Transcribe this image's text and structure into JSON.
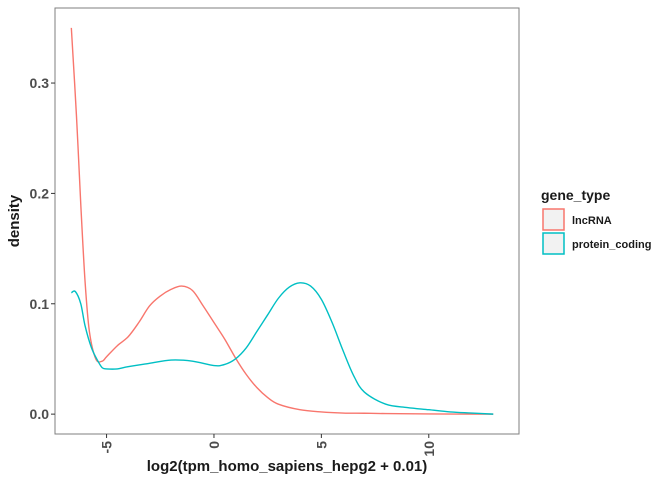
{
  "chart_data": {
    "type": "line",
    "xlabel": "log2(tpm_homo_sapiens_hepg2 + 0.01)",
    "ylabel": "density",
    "xlim": [
      -7.4,
      14.2
    ],
    "ylim": [
      -0.018,
      0.368
    ],
    "x_ticks": [
      -5,
      0,
      5,
      10
    ],
    "x_tick_labels": [
      "-5",
      "0",
      "5",
      "10"
    ],
    "y_ticks": [
      0.0,
      0.1,
      0.2,
      0.3
    ],
    "y_tick_labels": [
      "0.0",
      "0.1",
      "0.2",
      "0.3"
    ],
    "grid": false,
    "legend_position": "right",
    "legend_title": "gene_type",
    "series": [
      {
        "name": "lncRNA",
        "color": "#F8766D",
        "x": [
          -6.64,
          -6.4,
          -6.2,
          -6.0,
          -5.8,
          -5.5,
          -5.2,
          -5.0,
          -4.5,
          -4.0,
          -3.5,
          -3.0,
          -2.5,
          -2.0,
          -1.5,
          -1.0,
          -0.5,
          0.0,
          0.5,
          1.0,
          1.5,
          2.0,
          2.5,
          3.0,
          4.0,
          5.0,
          6.0,
          7.0,
          8.0,
          10.0,
          13.0
        ],
        "y": [
          0.35,
          0.27,
          0.19,
          0.12,
          0.075,
          0.05,
          0.048,
          0.052,
          0.062,
          0.07,
          0.083,
          0.098,
          0.107,
          0.113,
          0.116,
          0.112,
          0.098,
          0.083,
          0.068,
          0.051,
          0.036,
          0.024,
          0.015,
          0.009,
          0.004,
          0.002,
          0.001,
          0.0008,
          0.0005,
          0.0002,
          0.0
        ]
      },
      {
        "name": "protein_coding",
        "color": "#00BFC4",
        "x": [
          -6.64,
          -6.45,
          -6.2,
          -6.0,
          -5.7,
          -5.4,
          -5.2,
          -5.0,
          -4.5,
          -4.0,
          -3.0,
          -2.0,
          -1.0,
          0.0,
          0.5,
          1.0,
          1.5,
          2.0,
          2.5,
          3.0,
          3.5,
          4.0,
          4.5,
          5.0,
          5.5,
          6.0,
          6.5,
          7.0,
          8.0,
          9.0,
          10.0,
          11.0,
          12.0,
          13.0
        ],
        "y": [
          0.11,
          0.111,
          0.1,
          0.08,
          0.06,
          0.048,
          0.042,
          0.041,
          0.041,
          0.043,
          0.046,
          0.049,
          0.048,
          0.044,
          0.045,
          0.05,
          0.06,
          0.075,
          0.09,
          0.105,
          0.115,
          0.119,
          0.116,
          0.104,
          0.083,
          0.058,
          0.035,
          0.02,
          0.009,
          0.006,
          0.004,
          0.002,
          0.001,
          0.0
        ]
      }
    ]
  }
}
